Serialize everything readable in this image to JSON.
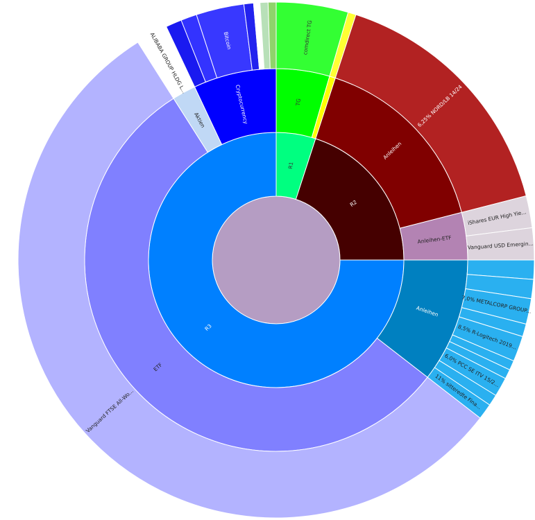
{
  "chart_data": {
    "type": "sunburst",
    "title": "",
    "center_color": "#b59dc3",
    "rings": [
      {
        "level": 1,
        "segments": [
          {
            "label": "R1",
            "value": 5,
            "color": "#00ff80",
            "label_color": "#333333"
          },
          {
            "label": "R2",
            "value": 20,
            "color": "#450000",
            "label_color": "#ffffff"
          },
          {
            "label": "R3",
            "value": 75,
            "color": "#0080ff",
            "label_color": "#ffffff"
          }
        ]
      },
      {
        "level": 2,
        "segments": [
          {
            "label": "TG",
            "value": 4.5,
            "color": "#00ff00",
            "label_color": "#333333"
          },
          {
            "label": "",
            "value": 0.5,
            "color": "#ffff00"
          },
          {
            "label": "Anleihen",
            "value": 16,
            "color": "#800000",
            "label_color": "#ffffff"
          },
          {
            "label": "Anleihen-ETF",
            "value": 4,
            "color": "#b383b3",
            "label_color": "#222222"
          },
          {
            "label": "Anleihen",
            "value": 10.5,
            "color": "#0080c0",
            "label_color": "#ffffff"
          },
          {
            "label": "ETF",
            "value": 55.5,
            "color": "#8080ff",
            "label_color": "#222222"
          },
          {
            "label": "Aktien",
            "value": 2,
            "color": "#c0d8f5",
            "label_color": "#222222"
          },
          {
            "label": "Cryptocurrency",
            "value": 7,
            "color": "#0000ff",
            "label_color": "#ffffff"
          }
        ]
      },
      {
        "level": 3,
        "segments": [
          {
            "label": "comdirect TG",
            "value": 4.5,
            "color": "#33ff33",
            "label_color": "#333333"
          },
          {
            "label": "",
            "value": 0.5,
            "color": "#ffff33"
          },
          {
            "label": "6,25% NORD/LB 14/24",
            "value": 16,
            "color": "#b22222",
            "label_color": "#ffffff"
          },
          {
            "label": "iShares EUR High Yie...",
            "value": 2,
            "color": "#ddd4dd",
            "label_color": "#222222"
          },
          {
            "label": "Vanguard USD Emergin...",
            "value": 2,
            "color": "#ddd4dd",
            "label_color": "#222222"
          },
          {
            "label": "",
            "value": 1.2,
            "color": "#2ab0f0"
          },
          {
            "label": "",
            "value": 1.2,
            "color": "#2ab0f0"
          },
          {
            "label": "7,0% METALCORP GROUP...",
            "value": 1.6,
            "color": "#2ab0f0",
            "label_color": "#222222"
          },
          {
            "label": "",
            "value": 0.8,
            "color": "#2ab0f0"
          },
          {
            "label": "8,5% R-Logitech 2019...",
            "value": 1.6,
            "color": "#2ab0f0",
            "label_color": "#222222"
          },
          {
            "label": "",
            "value": 0.6,
            "color": "#2ab0f0"
          },
          {
            "label": "",
            "value": 0.6,
            "color": "#2ab0f0"
          },
          {
            "label": "6,0% PCC SE ITV 15/2...",
            "value": 1.2,
            "color": "#2ab0f0",
            "label_color": "#222222"
          },
          {
            "label": "",
            "value": 0.7,
            "color": "#2ab0f0"
          },
          {
            "label": "11% sitteredte Fina...",
            "value": 1.0,
            "color": "#2ab0f0",
            "label_color": "#222222"
          },
          {
            "label": "Vanguard FTSE All-Wo...",
            "value": 55.5,
            "color": "#b3b3ff",
            "label_color": "#222222"
          },
          {
            "label": "ALIBABA GROUP HLDG L...",
            "value": 2,
            "color": "#ffffff",
            "label_color": "#222222"
          },
          {
            "label": "",
            "value": 1,
            "color": "#1a1af0"
          },
          {
            "label": "",
            "value": 1,
            "color": "#3333ff"
          },
          {
            "label": "Bitcoin",
            "value": 3,
            "color": "#3838ff",
            "label_color": "#ffffff"
          },
          {
            "label": "",
            "value": 0.6,
            "color": "#2222ee"
          },
          {
            "label": "",
            "value": 0.4,
            "color": "#ffffff"
          },
          {
            "label": "",
            "value": 0.5,
            "color": "#b8e0b8"
          },
          {
            "label": "",
            "value": 0.5,
            "color": "#8fd36b"
          }
        ]
      }
    ]
  }
}
